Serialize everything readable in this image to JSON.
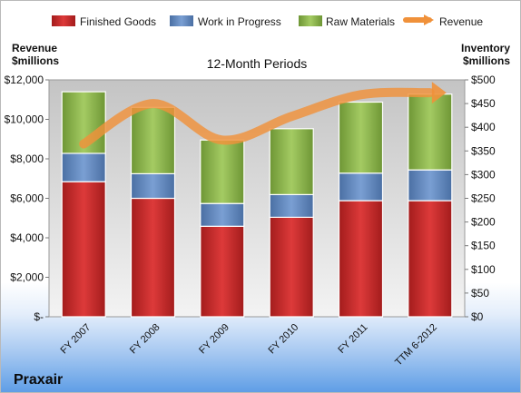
{
  "chart_data": {
    "type": "bar",
    "stacked": true,
    "title": "12-Month Periods",
    "company": "Praxair",
    "left_axis_label": [
      "Revenue",
      "$millions"
    ],
    "right_axis_label": [
      "Inventory",
      "$millions"
    ],
    "categories": [
      "FY 2007",
      "FY 2008",
      "FY 2009",
      "FY 2010",
      "FY 2011",
      "TTM 6-2012"
    ],
    "series": [
      {
        "name": "Finished Goods",
        "axis": "right",
        "color": "#d42a2a",
        "values": [
          285,
          250,
          191,
          210,
          245,
          245
        ]
      },
      {
        "name": "Work in Progress",
        "axis": "right",
        "color": "#5b85bf",
        "values": [
          60,
          52,
          48,
          48,
          58,
          65
        ]
      },
      {
        "name": "Raw Materials",
        "axis": "right",
        "color": "#8ab447",
        "values": [
          130,
          140,
          134,
          139,
          150,
          160
        ]
      },
      {
        "name": "Revenue",
        "axis": "left",
        "type": "line",
        "color": "#f0913a",
        "values": [
          9400,
          10800,
          8950,
          10150,
          11250,
          11350
        ]
      }
    ],
    "left_axis": {
      "min": 0,
      "max": 12000,
      "step": 2000,
      "tick_labels": [
        "$-",
        "$2,000",
        "$4,000",
        "$6,000",
        "$8,000",
        "$10,000",
        "$12,000"
      ]
    },
    "right_axis": {
      "min": 0,
      "max": 500,
      "step": 50,
      "tick_labels": [
        "$0",
        "$50",
        "$100",
        "$150",
        "$200",
        "$250",
        "$300",
        "$350",
        "$400",
        "$450",
        "$500"
      ]
    },
    "legend_position": "top",
    "grid": false
  }
}
